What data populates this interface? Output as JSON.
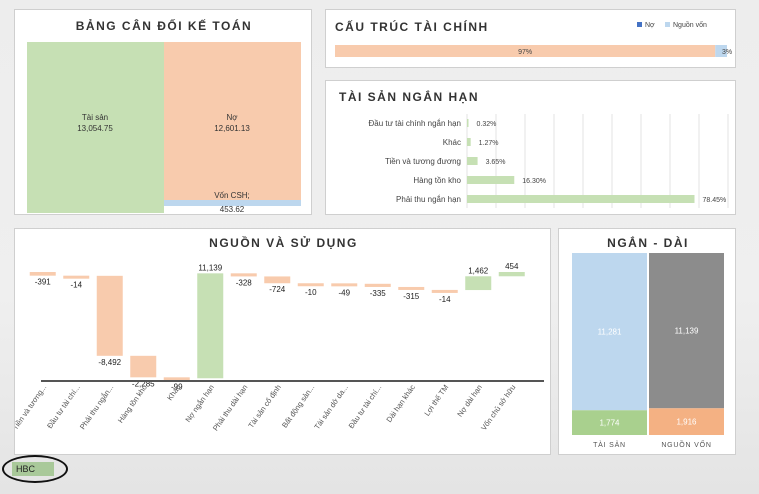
{
  "balance_sheet": {
    "title": "BẢNG CÂN ĐỐI KẾ TOÁN",
    "assets_label": "Tài sản",
    "assets_value": "13,054.75",
    "liabilities_label": "Nợ",
    "liabilities_value": "12,601.13",
    "equity_label": "Vốn CSH;",
    "equity_value": "453.62",
    "colors": {
      "assets": "#c6e0b4",
      "liabilities": "#f8cbad",
      "equity": "#bdd7ee"
    }
  },
  "capital_structure": {
    "title": "CẤU TRÚC TÀI CHÍNH",
    "legend": [
      "Nợ",
      "Nguồn vốn"
    ],
    "debt_label": "97%",
    "equity_label": "3%",
    "debt_share": 0.97,
    "colors": {
      "debt": "#f8cbad",
      "equity": "#bdd7ee",
      "legend_debt": "#4472c4",
      "legend_equity": "#bdd7ee"
    }
  },
  "current_assets": {
    "title": "TÀI SẢN NGẮN HẠN",
    "items": [
      {
        "label": "Đầu tư tài chính ngắn hạn",
        "value": 0.32,
        "text": "0.32%"
      },
      {
        "label": "Khác",
        "value": 1.27,
        "text": "1.27%"
      },
      {
        "label": "Tiền và tương đương",
        "value": 3.65,
        "text": "3.65%"
      },
      {
        "label": "Hàng tồn kho",
        "value": 16.3,
        "text": "16.30%"
      },
      {
        "label": "Phải thu ngắn hạn",
        "value": 78.45,
        "text": "78.45%"
      }
    ],
    "color": "#c6e0b4"
  },
  "sources_uses": {
    "title": "NGUỒN VÀ SỬ DỤNG",
    "categories": [
      "Tiền và tương...",
      "Đầu tư tài chí...",
      "Phải thu ngắn...",
      "Hàng tồn kho",
      "Khác",
      "Nợ ngắn hạn",
      "Phải thu dài hạn",
      "Tài sản cố định",
      "Bất động sản...",
      "Tài sản dở da...",
      "Đầu tư tài chí...",
      "Dài hạn khác",
      "Lợi thế TM",
      "Nợ dài hạn",
      "Vốn chủ sở hữu"
    ],
    "values": [
      -391,
      -14,
      -8492,
      -2285,
      -99,
      11139,
      -328,
      -724,
      -10,
      -49,
      -335,
      -315,
      -14,
      1462,
      454
    ],
    "labels": [
      "-391",
      "-14",
      "-8,492",
      "-2,285",
      "-99",
      "11,139",
      "-328",
      "-724",
      "-10",
      "-49",
      "-335",
      "-315",
      "-14",
      "1,462",
      "454"
    ],
    "colors": {
      "negative": "#f8cbad",
      "positive": "#c6e0b4"
    }
  },
  "short_long": {
    "title": "NGẮN - DÀI",
    "columns": [
      {
        "label": "TÀI SẢN",
        "top_value": 11281,
        "top_text": "11,281",
        "bottom_value": 1774,
        "bottom_text": "1,774",
        "top_color": "#bdd7ee",
        "bottom_color": "#a9d08e"
      },
      {
        "label": "NGUỒN VỐN",
        "top_value": 11139,
        "top_text": "11,139",
        "bottom_value": 1916,
        "bottom_text": "1,916",
        "top_color": "#8c8c8c",
        "bottom_color": "#f4b183"
      }
    ]
  },
  "ticker": "HBC"
}
